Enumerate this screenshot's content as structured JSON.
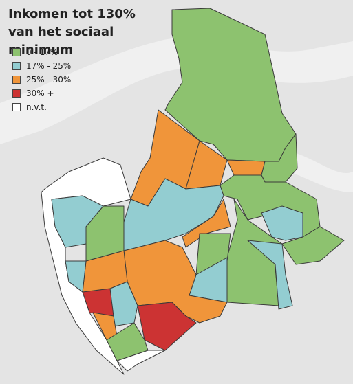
{
  "title": "Inkomen tot 130% van het sociaal minimum",
  "legend": {
    "items": [
      {
        "label": "0 - 17%",
        "color": "#8dc26f"
      },
      {
        "label": "17% - 25%",
        "color": "#93cdd1"
      },
      {
        "label": "25% - 30%",
        "color": "#f0953a"
      },
      {
        "label": "30% +",
        "color": "#cc3333"
      },
      {
        "label": "n.v.t.",
        "color": "#ffffff"
      }
    ]
  }
}
